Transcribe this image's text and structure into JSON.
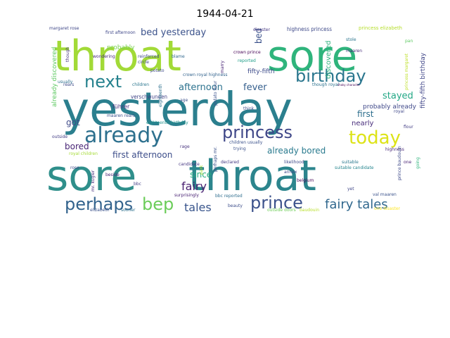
{
  "title": "1944-04-21",
  "words": [
    {
      "text": "yesterday",
      "color": "#2b7f8e"
    },
    {
      "text": "sore",
      "color": "#2f8f8b",
      "style": "a"
    },
    {
      "text": "throat",
      "color": "#2c858d",
      "style": "a"
    },
    {
      "text": "throat",
      "color": "#a2da37",
      "style": "b"
    },
    {
      "text": "sore",
      "color": "#2fb47c",
      "style": "b"
    },
    {
      "text": "already",
      "color": "#2d708e"
    },
    {
      "text": "princess",
      "color": "#3f4788"
    },
    {
      "text": "birthday",
      "color": "#2a768e"
    },
    {
      "text": "today",
      "color": "#dde318"
    },
    {
      "text": "next",
      "color": "#26828e"
    },
    {
      "text": "perhaps",
      "color": "#33638d"
    },
    {
      "text": "bep",
      "color": "#6ccd5a"
    },
    {
      "text": "prince",
      "color": "#3b518b"
    },
    {
      "text": "fairy tales",
      "color": "#31688e"
    },
    {
      "text": "tales",
      "color": "#39558c"
    },
    {
      "text": "fairy",
      "color": "#481f70"
    },
    {
      "text": "bed yesterday",
      "color": "#3b528b"
    },
    {
      "text": "afternoon",
      "color": "#2c728e"
    },
    {
      "text": "fever",
      "color": "#355f8d"
    },
    {
      "text": "stayed",
      "color": "#22a785"
    },
    {
      "text": "first afternoon",
      "color": "#3d4e8a"
    },
    {
      "text": "already bored",
      "color": "#297a8e"
    },
    {
      "text": "since",
      "color": "#25ac82"
    },
    {
      "text": "got",
      "color": "#3e4a89"
    },
    {
      "text": "bored",
      "color": "#482475"
    },
    {
      "text": "first",
      "color": "#2e6f8e"
    },
    {
      "text": "nearly",
      "color": "#472c7a"
    },
    {
      "text": "probably already",
      "color": "#3f4889"
    },
    {
      "text": "bed",
      "color": "#3b518b"
    },
    {
      "text": "discovered",
      "color": "#2db27d"
    },
    {
      "text": "already discovered",
      "color": "#5ec962"
    },
    {
      "text": "fifty-fifth birthday",
      "color": "#404688"
    },
    {
      "text": "fifty-fifth",
      "color": "#3e4c8a"
    },
    {
      "text": "highness princess",
      "color": "#3e4989"
    },
    {
      "text": "princess elizabeth",
      "color": "#b5de2b"
    },
    {
      "text": "margaret rose",
      "color": "#3f4788"
    },
    {
      "text": "probably",
      "color": "#7ad151"
    },
    {
      "text": "verschwunden",
      "color": "#414487"
    },
    {
      "text": "führer",
      "color": "#46327e"
    },
    {
      "text": "crown royal highness",
      "color": "#33638d"
    },
    {
      "text": "crown prince",
      "color": "#440154"
    },
    {
      "text": "though royal",
      "color": "#2c728e"
    },
    {
      "text": "first afternoon",
      "color": "#3f4788"
    },
    {
      "text": "royal children",
      "color": "#a5db36"
    },
    {
      "text": "eighteenth birthday",
      "color": "#21918c"
    },
    {
      "text": "children usually",
      "color": "#3b528b"
    },
    {
      "text": "declared",
      "color": "#443983"
    },
    {
      "text": "candidate",
      "color": "#453781"
    },
    {
      "text": "likelihood",
      "color": "#3e4a89"
    },
    {
      "text": "suitable",
      "color": "#2a788e"
    },
    {
      "text": "suitable candidate",
      "color": "#25858e"
    },
    {
      "text": "trying",
      "color": "#3b528b"
    },
    {
      "text": "highness",
      "color": "#482878"
    },
    {
      "text": "belgium",
      "color": "#440154"
    },
    {
      "text": "prince baudouin",
      "color": "#3e4a89"
    },
    {
      "text": "outside doors",
      "color": "#6ece58"
    },
    {
      "text": "baudouin",
      "color": "#b8de29"
    },
    {
      "text": "one disaster",
      "color": "#fde725"
    },
    {
      "text": "rage",
      "color": "#46327e"
    },
    {
      "text": "surprisingly",
      "color": "#482173"
    },
    {
      "text": "bbc reported",
      "color": "#2e6e8e"
    },
    {
      "text": "beauty",
      "color": "#3d4e8a"
    },
    {
      "text": "elizabeth",
      "color": "#3b528b"
    },
    {
      "text": "sooner",
      "color": "#2d708e"
    },
    {
      "text": "reported",
      "color": "#1f9e89"
    },
    {
      "text": "disaster",
      "color": "#453781"
    },
    {
      "text": "maaren",
      "color": "#472d7b"
    },
    {
      "text": "maaren rears",
      "color": "#3b528b"
    },
    {
      "text": "stole",
      "color": "#2b758e"
    },
    {
      "text": "potato",
      "color": "#3e4a89"
    },
    {
      "text": "potato flour",
      "color": "#3b528b"
    },
    {
      "text": "wondering",
      "color": "#482878"
    },
    {
      "text": "reinforced",
      "color": "#3f4889"
    },
    {
      "text": "blame",
      "color": "#31688e"
    },
    {
      "text": "think",
      "color": "#3e4c8a"
    },
    {
      "text": "marry",
      "color": "#482475"
    },
    {
      "text": "royal",
      "color": "#3f4788"
    },
    {
      "text": "flour",
      "color": "#433e85"
    },
    {
      "text": "pan",
      "color": "#5ec962"
    },
    {
      "text": "princess margaret",
      "color": "#bddf26"
    },
    {
      "text": "rears",
      "color": "#3e4989"
    },
    {
      "text": "eighteenth",
      "color": "#2d718e"
    },
    {
      "text": "usually",
      "color": "#2e6f8e"
    },
    {
      "text": "children",
      "color": "#2a768e"
    },
    {
      "text": "outside",
      "color": "#433e85"
    },
    {
      "text": "rose",
      "color": "#3e4a89"
    },
    {
      "text": "beside",
      "color": "#482576"
    },
    {
      "text": "mr. kugler",
      "color": "#46327e"
    },
    {
      "text": "perhaps mr.",
      "color": "#3b528b"
    },
    {
      "text": "bbc",
      "color": "#433e85"
    },
    {
      "text": "annex",
      "color": "#3e4a89"
    },
    {
      "text": "yet",
      "color": "#404688"
    },
    {
      "text": "going",
      "color": "#2fb47c"
    },
    {
      "text": "one",
      "color": "#482173"
    },
    {
      "text": "val maaren",
      "color": "#3b528b"
    },
    {
      "text": "shaky character",
      "color": "#440154"
    },
    {
      "text": "park",
      "color": "#a5db36"
    },
    {
      "text": "though",
      "color": "#46337f"
    },
    {
      "text": "circle",
      "color": "#3f4788"
    },
    {
      "text": "age",
      "color": "#3b518b"
    }
  ]
}
